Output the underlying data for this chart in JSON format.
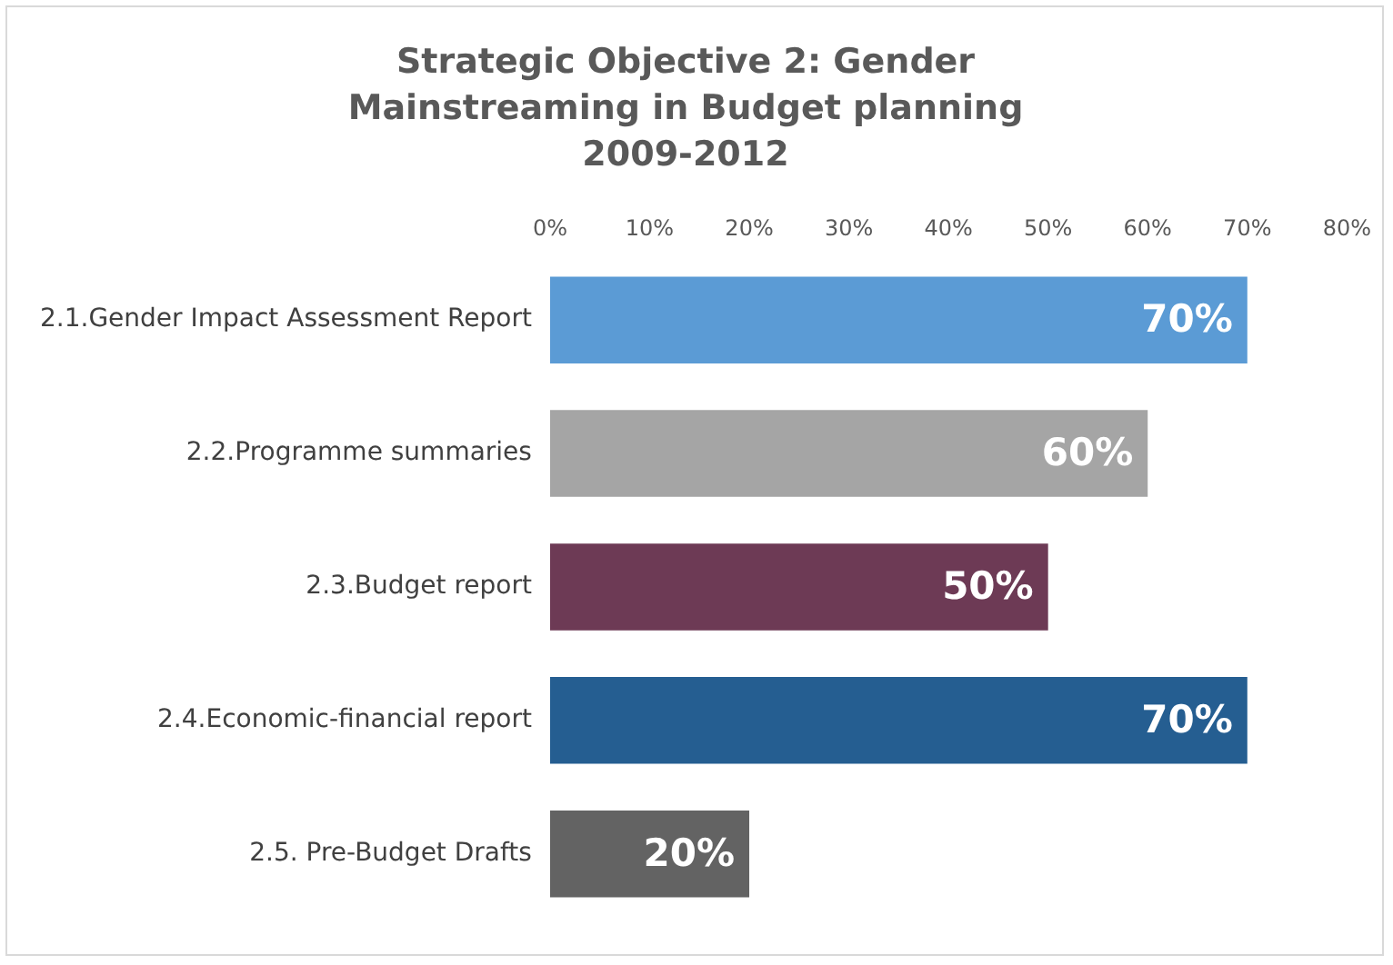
{
  "chart_data": {
    "type": "bar",
    "orientation": "horizontal",
    "title": "Strategic Objective 2: Gender Mainstreaming in Budget planning 2009-2012",
    "categories": [
      "2.1.Gender Impact Assessment Report",
      "2.2.Programme summaries",
      "2.3.Budget report",
      "2.4.Economic-financial report",
      "2.5. Pre-Budget Drafts"
    ],
    "values": [
      70,
      60,
      50,
      70,
      20
    ],
    "colors": [
      "#5b9bd5",
      "#a5a5a5",
      "#6d3a55",
      "#255e91",
      "#636363"
    ],
    "value_labels": [
      "70%",
      "60%",
      "50%",
      "70%",
      "20%"
    ],
    "xlim": [
      0,
      80
    ],
    "xticks": [
      {
        "value": 0,
        "label": "0%"
      },
      {
        "value": 10,
        "label": "10%"
      },
      {
        "value": 20,
        "label": "20%"
      },
      {
        "value": 30,
        "label": "30%"
      },
      {
        "value": 40,
        "label": "40%"
      },
      {
        "value": 50,
        "label": "50%"
      },
      {
        "value": 60,
        "label": "60%"
      },
      {
        "value": 70,
        "label": "70%"
      },
      {
        "value": 80,
        "label": "80%"
      }
    ],
    "grid": false,
    "legend": false
  }
}
